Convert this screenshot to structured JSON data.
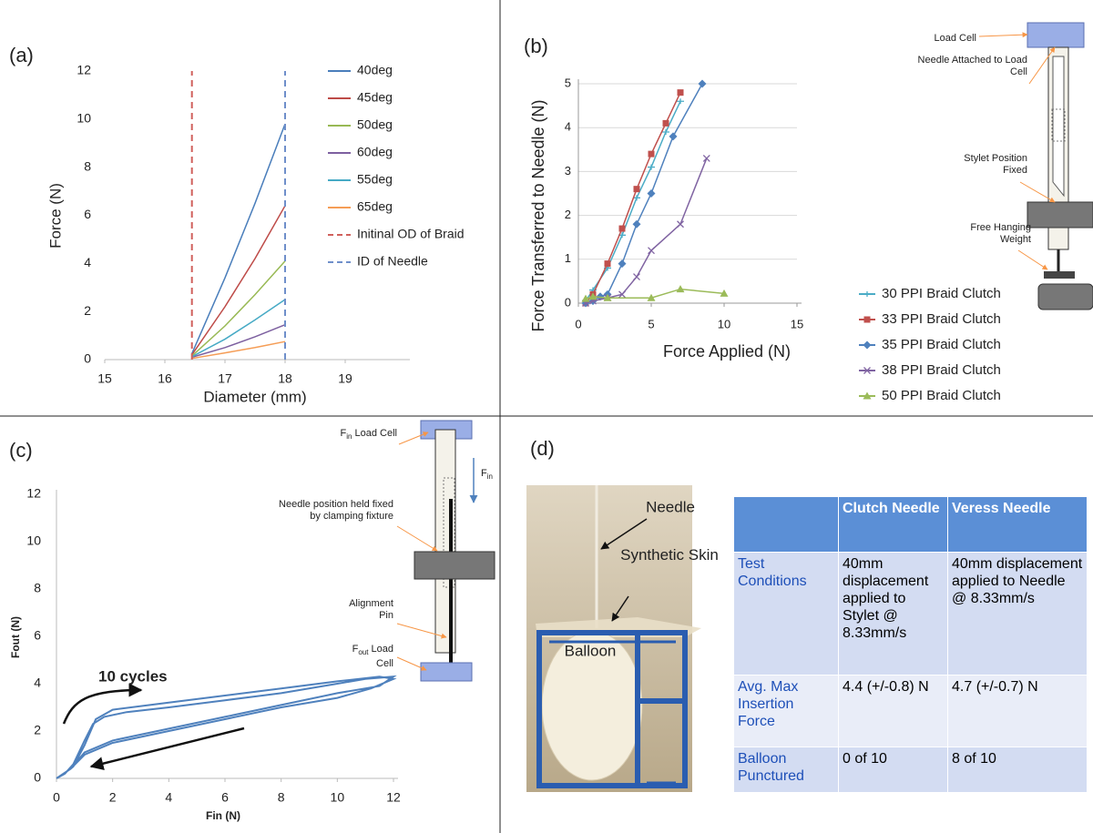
{
  "panel_labels": [
    "(a)",
    "(b)",
    "(c)",
    "(d)"
  ],
  "chart_data": [
    {
      "type": "line",
      "x_label": "Diameter (mm)",
      "y_label": "Force (N)",
      "xlim": [
        15,
        20
      ],
      "xticks": [
        15,
        16,
        17,
        18,
        19
      ],
      "ylim": [
        0,
        12
      ],
      "yticks": [
        0,
        2,
        4,
        6,
        8,
        10,
        12
      ],
      "grid": false,
      "legend": "upper right",
      "series": [
        {
          "name": "40deg",
          "color": "#4a7ebb",
          "x": [
            16.45,
            17,
            17.5,
            18
          ],
          "values": [
            0.25,
            3.4,
            6.5,
            9.8
          ]
        },
        {
          "name": "45deg",
          "color": "#be4b48",
          "x": [
            16.45,
            17,
            17.5,
            18
          ],
          "values": [
            0.2,
            2.2,
            4.2,
            6.4
          ]
        },
        {
          "name": "50deg",
          "color": "#98b954",
          "x": [
            16.45,
            17,
            17.5,
            18
          ],
          "values": [
            0.15,
            1.4,
            2.7,
            4.1
          ]
        },
        {
          "name": "60deg",
          "color": "#7d60a0",
          "x": [
            16.45,
            17,
            17.5,
            18
          ],
          "values": [
            0.1,
            0.5,
            0.95,
            1.45
          ]
        },
        {
          "name": "55deg",
          "color": "#46aac5",
          "x": [
            16.45,
            17,
            17.5,
            18
          ],
          "values": [
            0.12,
            0.85,
            1.65,
            2.5
          ]
        },
        {
          "name": "65deg",
          "color": "#f59d56",
          "x": [
            16.45,
            17,
            17.5,
            18
          ],
          "values": [
            0.05,
            0.28,
            0.5,
            0.75
          ]
        },
        {
          "name": "Initinal OD of Braid",
          "color": "#d0605c",
          "dash": true,
          "x": [
            16.45,
            16.45
          ],
          "values": [
            0,
            12
          ]
        },
        {
          "name": "ID of Needle",
          "color": "#6f8fca",
          "dash": true,
          "x": [
            18,
            18
          ],
          "values": [
            0,
            12
          ]
        }
      ]
    },
    {
      "type": "line",
      "x_label": "Force Applied (N)",
      "y_label": "Force Transferred to Needle (N)",
      "xlim": [
        0,
        15
      ],
      "xticks": [
        0,
        5,
        10,
        15
      ],
      "ylim": [
        0,
        5
      ],
      "yticks": [
        0,
        1,
        2,
        3,
        4,
        5
      ],
      "grid": true,
      "legend": "lower right",
      "series": [
        {
          "name": "30 PPI Braid Clutch",
          "color": "#4bacc6",
          "marker": "dash",
          "x": [
            0.5,
            1,
            2,
            3,
            4,
            5,
            6,
            7
          ],
          "values": [
            0.05,
            0.3,
            0.8,
            1.55,
            2.4,
            3.1,
            3.9,
            4.6
          ]
        },
        {
          "name": "33 PPI Braid Clutch",
          "color": "#c0504d",
          "marker": "square",
          "x": [
            0.5,
            1,
            2,
            3,
            4,
            5,
            6,
            7
          ],
          "values": [
            0,
            0.2,
            0.9,
            1.7,
            2.6,
            3.4,
            4.1,
            4.8
          ]
        },
        {
          "name": "35 PPI Braid Clutch",
          "color": "#4f81bd",
          "marker": "diamond",
          "x": [
            0.5,
            1,
            1.5,
            2,
            3,
            4,
            5,
            6.5,
            8.5
          ],
          "values": [
            0,
            0.05,
            0.15,
            0.2,
            0.9,
            1.8,
            2.5,
            3.8,
            5
          ]
        },
        {
          "name": "38 PPI Braid Clutch",
          "color": "#8064a2",
          "marker": "x",
          "x": [
            0.5,
            1,
            2,
            3,
            4,
            5,
            7,
            8.8
          ],
          "values": [
            0,
            0.05,
            0.12,
            0.2,
            0.6,
            1.2,
            1.8,
            3.3
          ]
        },
        {
          "name": "50 PPI Braid Clutch",
          "color": "#9bbb59",
          "marker": "triangle",
          "x": [
            0.5,
            1,
            2,
            5,
            7,
            10
          ],
          "values": [
            0.1,
            0.15,
            0.12,
            0.12,
            0.32,
            0.22
          ]
        }
      ]
    },
    {
      "type": "line",
      "x_label": "Fin (N)",
      "y_label": "Fout (N)",
      "xlim": [
        0,
        12
      ],
      "xticks": [
        0,
        2,
        4,
        6,
        8,
        10,
        12
      ],
      "ylim": [
        0,
        12
      ],
      "yticks": [
        0,
        2,
        4,
        6,
        8,
        10,
        12
      ],
      "grid": false,
      "annotations": [
        "10 cycles"
      ],
      "series": [
        {
          "color": "#4f81bd",
          "x": [
            0,
            0.3,
            0.6,
            1,
            1.3,
            1.7,
            2.5,
            4,
            6,
            8,
            10,
            11,
            12,
            11.5,
            10,
            8,
            6,
            4,
            2,
            1,
            0.5,
            0.6,
            1,
            1.4,
            2,
            4,
            6,
            8,
            10,
            11.5,
            12,
            11.2,
            10,
            8,
            6,
            4,
            2,
            1,
            0.5,
            0
          ],
          "values": [
            0,
            0.2,
            0.6,
            1.6,
            2.3,
            2.6,
            2.8,
            3.0,
            3.3,
            3.6,
            4.0,
            4.2,
            4.3,
            3.9,
            3.6,
            3.1,
            2.6,
            2.1,
            1.6,
            1.1,
            0.4,
            0.5,
            1.4,
            2.5,
            2.9,
            3.2,
            3.5,
            3.8,
            4.1,
            4.3,
            4.2,
            3.8,
            3.4,
            3.0,
            2.5,
            2.0,
            1.5,
            1.0,
            0.4,
            0
          ]
        }
      ]
    }
  ],
  "diagram_b": {
    "labels": [
      "Load Cell",
      "Needle Attached to Load Cell",
      "Stylet Position Fixed",
      "Free Hanging Weight"
    ]
  },
  "diagram_c": {
    "load_cell_in": {
      "symbol": "F",
      "subscript": "in",
      "text": "Load Cell"
    },
    "force_in": {
      "symbol": "F",
      "subscript": "in"
    },
    "clamp": "Needle position held fixed by clamping fixture",
    "pin": "Alignment Pin",
    "load_cell_out": {
      "symbol": "F",
      "subscript": "out",
      "text": "Load Cell"
    }
  },
  "photo": {
    "labels": [
      "Needle",
      "Synthetic Skin",
      "Balloon"
    ]
  },
  "table": {
    "header": [
      "Clutch Needle",
      "Veress Needle"
    ],
    "rows": [
      [
        "Test Conditions",
        "40mm displacement applied to Stylet @ 8.33mm/s",
        "40mm displacement applied to Needle @ 8.33mm/s"
      ],
      [
        "Avg. Max Insertion Force",
        "4.4 (+/-0.8) N",
        "4.7 (+/-0.7) N"
      ],
      [
        "Balloon Punctured",
        "0 of 10",
        "8 of 10"
      ]
    ]
  }
}
